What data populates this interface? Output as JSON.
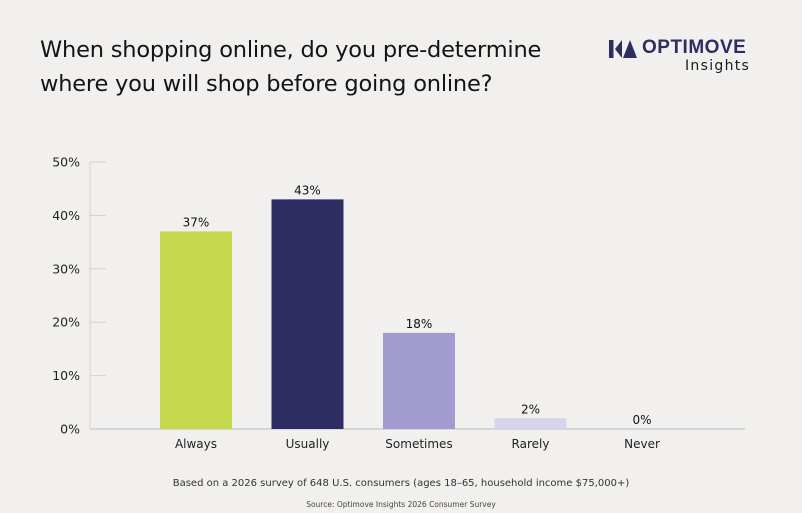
{
  "title_lines": [
    "When shopping online, do you pre-determine",
    "where you will shop before going online?"
  ],
  "logo": {
    "name": "OPTIMOVE",
    "sub": "Insights",
    "color": "#2e2d63"
  },
  "chart_data": {
    "type": "bar",
    "categories": [
      "Always",
      "Usually",
      "Sometimes",
      "Rarely",
      "Never"
    ],
    "values": [
      37,
      43,
      18,
      2,
      0
    ],
    "value_labels": [
      "37%",
      "43%",
      "18%",
      "2%",
      "0%"
    ],
    "colors": [
      "#c5d94e",
      "#2e2d63",
      "#a29bcf",
      "#d6d3ec",
      "#d6d3ec"
    ],
    "ylim": [
      0,
      50
    ],
    "yticks": [
      0,
      10,
      20,
      30,
      40,
      50
    ],
    "ytick_labels": [
      "0%",
      "10%",
      "20%",
      "30%",
      "40%",
      "50%"
    ],
    "grid": true,
    "title": "",
    "xlabel": "",
    "ylabel": ""
  },
  "footnote": "Based on a 2026 survey of 648 U.S. consumers (ages 18–65, household income $75,000+)",
  "source": "Source: Optimove Insights 2026 Consumer Survey"
}
